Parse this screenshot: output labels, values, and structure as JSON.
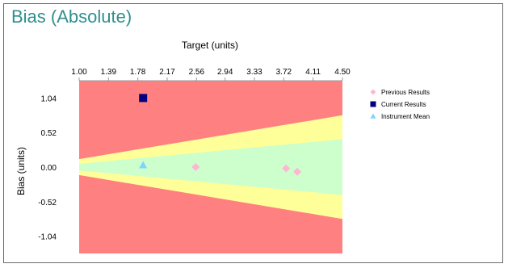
{
  "title": "Bias (Absolute)",
  "chart_data": {
    "type": "scatter",
    "xlabel": "Target (units)",
    "ylabel": "Bias (units)",
    "xlim": [
      1.0,
      4.5
    ],
    "ylim": [
      -1.3,
      1.3
    ],
    "x_ticks": [
      "1.00",
      "1.39",
      "1.78",
      "2.17",
      "2.56",
      "2.94",
      "3.33",
      "3.72",
      "4.11",
      "4.50"
    ],
    "x_tick_values": [
      1.0,
      1.39,
      1.78,
      2.17,
      2.56,
      2.94,
      3.33,
      3.72,
      4.11,
      4.5
    ],
    "y_ticks": [
      "1.04",
      "0.52",
      "0.00",
      "-0.52",
      "-1.04"
    ],
    "y_tick_values": [
      1.04,
      0.52,
      0.0,
      -0.52,
      -1.04
    ],
    "zones": {
      "yellow_half_width": [
        [
          1.0,
          0.12
        ],
        [
          4.5,
          0.78
        ]
      ],
      "green_half_width": [
        [
          1.0,
          0.05
        ],
        [
          4.5,
          0.42
        ]
      ]
    },
    "zone_colors": {
      "red": "#ff8080",
      "yellow": "#ffff99",
      "green": "#ccffcc"
    },
    "series": [
      {
        "name": "Previous Results",
        "marker": "diamond",
        "color": "#ffb6d5",
        "points": [
          [
            2.55,
            0.0
          ],
          [
            3.75,
            -0.02
          ],
          [
            3.9,
            -0.07
          ]
        ]
      },
      {
        "name": "Current Results",
        "marker": "square",
        "color": "#000080",
        "points": [
          [
            1.85,
            1.04
          ]
        ]
      },
      {
        "name": "Instrument Mean",
        "marker": "triangle",
        "color": "#7fd4ff",
        "points": [
          [
            1.85,
            0.03
          ]
        ]
      }
    ],
    "legend_position": "right"
  }
}
